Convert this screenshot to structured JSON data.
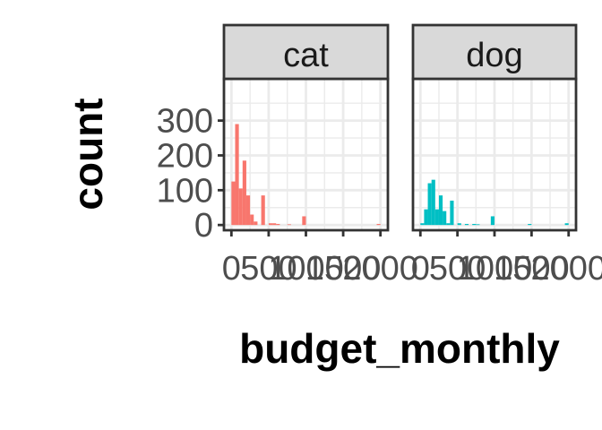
{
  "chart_data": {
    "type": "bar",
    "layout": "faceted-histogram",
    "xlabel": "budget_monthly",
    "ylabel": "count",
    "xlim": [
      0,
      2000
    ],
    "ylim": [
      0,
      300
    ],
    "x_ticks": [
      0,
      500,
      1000,
      1500,
      2000
    ],
    "x_tick_labels": [
      "0",
      "500",
      "1000",
      "1500",
      "2000"
    ],
    "y_ticks": [
      0,
      100,
      200,
      300
    ],
    "y_tick_labels": [
      "0",
      "100",
      "200",
      "300"
    ],
    "grid": true,
    "bin_width": 50,
    "facets": [
      {
        "label": "cat",
        "color": "#F8766D",
        "bins": [
          {
            "x0": 0,
            "x1": 50,
            "count": 125
          },
          {
            "x0": 50,
            "x1": 100,
            "count": 290
          },
          {
            "x0": 100,
            "x1": 150,
            "count": 105
          },
          {
            "x0": 150,
            "x1": 200,
            "count": 185
          },
          {
            "x0": 200,
            "x1": 250,
            "count": 85
          },
          {
            "x0": 250,
            "x1": 300,
            "count": 30
          },
          {
            "x0": 300,
            "x1": 350,
            "count": 10
          },
          {
            "x0": 350,
            "x1": 400,
            "count": 0
          },
          {
            "x0": 400,
            "x1": 450,
            "count": 85
          },
          {
            "x0": 450,
            "x1": 500,
            "count": 0
          },
          {
            "x0": 500,
            "x1": 550,
            "count": 5
          },
          {
            "x0": 550,
            "x1": 600,
            "count": 5
          },
          {
            "x0": 600,
            "x1": 650,
            "count": 3
          },
          {
            "x0": 750,
            "x1": 800,
            "count": 2
          },
          {
            "x0": 950,
            "x1": 1000,
            "count": 25
          },
          {
            "x0": 1950,
            "x1": 2000,
            "count": 3
          }
        ]
      },
      {
        "label": "dog",
        "color": "#00BFC4",
        "bins": [
          {
            "x0": 0,
            "x1": 50,
            "count": 5
          },
          {
            "x0": 50,
            "x1": 100,
            "count": 45
          },
          {
            "x0": 100,
            "x1": 150,
            "count": 120
          },
          {
            "x0": 150,
            "x1": 200,
            "count": 130
          },
          {
            "x0": 200,
            "x1": 250,
            "count": 45
          },
          {
            "x0": 250,
            "x1": 300,
            "count": 85
          },
          {
            "x0": 300,
            "x1": 350,
            "count": 40
          },
          {
            "x0": 350,
            "x1": 400,
            "count": 5
          },
          {
            "x0": 400,
            "x1": 450,
            "count": 70
          },
          {
            "x0": 500,
            "x1": 550,
            "count": 5
          },
          {
            "x0": 600,
            "x1": 650,
            "count": 3
          },
          {
            "x0": 700,
            "x1": 750,
            "count": 3
          },
          {
            "x0": 750,
            "x1": 800,
            "count": 2
          },
          {
            "x0": 950,
            "x1": 1000,
            "count": 25
          },
          {
            "x0": 1450,
            "x1": 1500,
            "count": 3
          },
          {
            "x0": 1950,
            "x1": 2000,
            "count": 5
          }
        ]
      }
    ]
  }
}
